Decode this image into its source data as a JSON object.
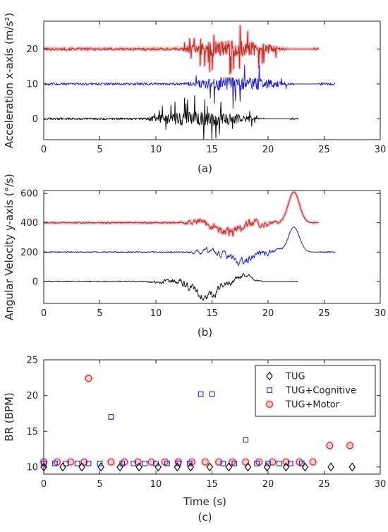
{
  "chart_data": [
    {
      "type": "line",
      "caption": "(a)",
      "ylabel": "Acceleration x-axis (m/s²)",
      "xlim": [
        0,
        30
      ],
      "ylim": [
        -6,
        28
      ],
      "xticks": [
        0,
        5,
        10,
        15,
        20,
        25,
        30
      ],
      "yticks": [
        0,
        10,
        20
      ],
      "grid": false,
      "series": [
        {
          "color": "#b5331f",
          "halo": "#f2a0b4",
          "offset": 20,
          "x_start": 0,
          "x_end": 24.5,
          "active_start": 12.0,
          "active_end": 24.0,
          "quiet_noise": 0.35,
          "active_amp": 6.5
        },
        {
          "color": "#1f1fd6",
          "halo": "",
          "offset": 10,
          "x_start": 0,
          "x_end": 26.0,
          "active_start": 12.5,
          "active_end": 24.5,
          "quiet_noise": 0.35,
          "active_amp": 6.0
        },
        {
          "color": "#111111",
          "halo": "",
          "offset": 0,
          "x_start": 0,
          "x_end": 22.7,
          "active_start": 9.0,
          "active_end": 22.0,
          "quiet_noise": 0.3,
          "active_amp": 6.0
        }
      ]
    },
    {
      "type": "line",
      "caption": "(b)",
      "ylabel": "Angular Velocity y-axis (°/s)",
      "xlim": [
        0,
        30
      ],
      "ylim": [
        -150,
        620
      ],
      "xticks": [
        0,
        5,
        10,
        15,
        20,
        25,
        30
      ],
      "yticks": [
        0,
        200,
        400,
        600
      ],
      "grid": false,
      "series": [
        {
          "color": "#b5331f",
          "halo": "#f2a0b4",
          "offset": 400,
          "x_start": 0,
          "x_end": 24.5,
          "active_start": 12.0,
          "active_end": 24.0,
          "quiet_noise": 4,
          "active_amp": 45,
          "dip_center": 16.5,
          "dip_depth": -70,
          "peak_center": 22.3,
          "peak_height": 210
        },
        {
          "color": "#1f1fd6",
          "halo": "",
          "offset": 200,
          "x_start": 0,
          "x_end": 26.0,
          "active_start": 12.5,
          "active_end": 24.5,
          "quiet_noise": 4,
          "active_amp": 40,
          "dip_center": 17.5,
          "dip_depth": -70,
          "peak_center": 22.3,
          "peak_height": 170
        },
        {
          "color": "#111111",
          "halo": "",
          "offset": 0,
          "x_start": 0,
          "x_end": 22.7,
          "active_start": 9.0,
          "active_end": 22.0,
          "quiet_noise": 3,
          "active_amp": 40,
          "dip_center": 14.5,
          "dip_depth": -110,
          "peak_center": 18.0,
          "peak_height": 40
        }
      ]
    },
    {
      "type": "scatter",
      "caption": "(c)",
      "xlabel": "Time (s)",
      "ylabel": "BR (BPM)",
      "xlim": [
        0,
        30
      ],
      "ylim": [
        9,
        25
      ],
      "xticks": [
        0,
        5,
        10,
        15,
        20,
        25,
        30
      ],
      "yticks": [
        10,
        15,
        20,
        25
      ],
      "grid": false,
      "legend_position": "top-right",
      "series": [
        {
          "name": "TUG",
          "marker": "diamond",
          "color": "#000000",
          "x": [
            0.0,
            1.7,
            3.4,
            5.1,
            6.8,
            8.5,
            10.2,
            11.9,
            13.1,
            14.8,
            16.5,
            18.2,
            19.9,
            21.6,
            23.3,
            25.6,
            27.5
          ],
          "y": [
            10,
            10,
            10,
            10,
            10,
            10,
            10,
            10,
            10,
            10,
            10,
            10,
            10,
            10,
            10,
            10,
            10
          ]
        },
        {
          "name": "TUG+Cognitive",
          "marker": "square",
          "color": "#1f1fd6",
          "x": [
            0.0,
            1.0,
            2.0,
            3.0,
            4.0,
            5.0,
            6.0,
            7.0,
            8.0,
            9.0,
            10.0,
            11.0,
            12.0,
            13.0,
            14.0,
            15.0,
            16.0,
            17.0,
            18.0,
            19.0,
            20.0,
            21.0,
            22.0,
            23.0
          ],
          "y": [
            10.5,
            10.5,
            10.5,
            10.5,
            10.5,
            10.5,
            17.0,
            10.5,
            10.5,
            10.5,
            10.5,
            10.5,
            10.5,
            10.5,
            20.2,
            20.2,
            10.5,
            10.5,
            13.8,
            10.5,
            10.5,
            10.5,
            10.5,
            10.5
          ]
        },
        {
          "name": "TUG+Motor",
          "marker": "circle",
          "color": "#b5331f",
          "x": [
            0.0,
            1.2,
            2.4,
            3.6,
            4.0,
            6.0,
            7.2,
            8.4,
            9.6,
            10.8,
            12.0,
            13.2,
            14.4,
            15.6,
            16.8,
            18.0,
            19.2,
            20.4,
            21.6,
            22.8,
            24.0,
            25.5,
            27.3
          ],
          "y": [
            10.7,
            10.7,
            10.7,
            10.7,
            22.4,
            10.7,
            10.7,
            10.7,
            10.7,
            10.7,
            10.7,
            10.7,
            10.7,
            10.7,
            10.7,
            10.7,
            10.7,
            10.7,
            10.7,
            10.7,
            10.7,
            13.0,
            13.0
          ]
        }
      ]
    }
  ]
}
